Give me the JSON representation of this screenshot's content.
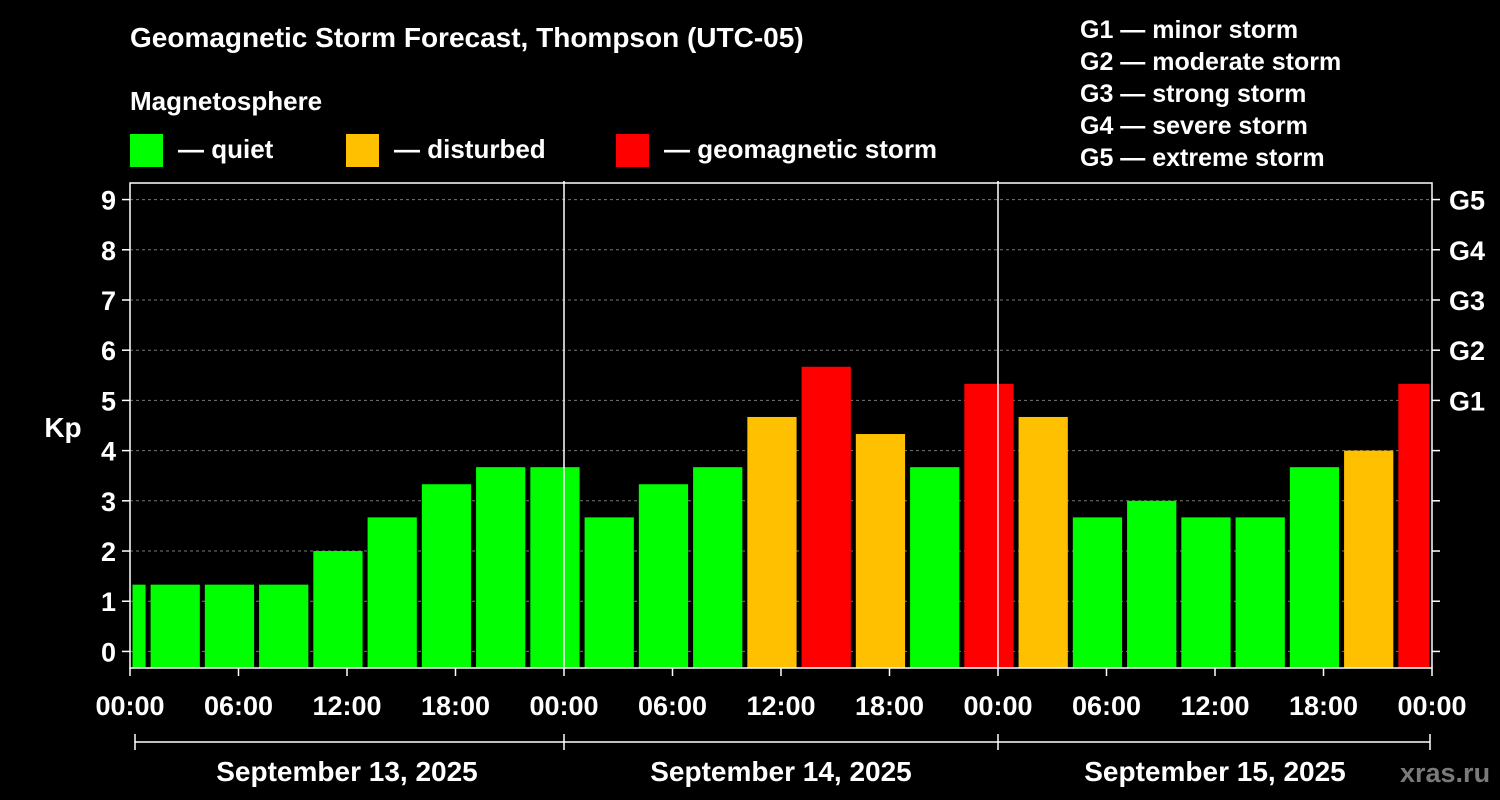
{
  "header": {
    "title": "Geomagnetic Storm Forecast, Thompson (UTC-05)",
    "magnetosphere_label": "Magnetosphere"
  },
  "legend": [
    {
      "label": "— quiet",
      "color": "#00ff00"
    },
    {
      "label": "— disturbed",
      "color": "#ffc000"
    },
    {
      "label": "— geomagnetic storm",
      "color": "#ff0000"
    }
  ],
  "storm_scale": [
    "G1 — minor storm",
    "G2 — moderate storm",
    "G3 — strong storm",
    "G4 — severe storm",
    "G5 — extreme storm"
  ],
  "watermark": "xras.ru",
  "chart_data": {
    "type": "bar",
    "ylabel": "Kp",
    "ylim": [
      -0.33,
      9.33
    ],
    "yticks": [
      0,
      1,
      2,
      3,
      4,
      5,
      6,
      7,
      8,
      9
    ],
    "right_axis": [
      {
        "kp": 5,
        "label": "G1"
      },
      {
        "kp": 6,
        "label": "G2"
      },
      {
        "kp": 7,
        "label": "G3"
      },
      {
        "kp": 8,
        "label": "G4"
      },
      {
        "kp": 9,
        "label": "G5"
      }
    ],
    "x_hours_range": [
      0,
      72
    ],
    "x_ticks": [
      {
        "h": 0,
        "label": "00:00"
      },
      {
        "h": 6,
        "label": "06:00"
      },
      {
        "h": 12,
        "label": "12:00"
      },
      {
        "h": 18,
        "label": "18:00"
      },
      {
        "h": 24,
        "label": "00:00"
      },
      {
        "h": 30,
        "label": "06:00"
      },
      {
        "h": 36,
        "label": "12:00"
      },
      {
        "h": 42,
        "label": "18:00"
      },
      {
        "h": 48,
        "label": "00:00"
      },
      {
        "h": 54,
        "label": "06:00"
      },
      {
        "h": 60,
        "label": "12:00"
      },
      {
        "h": 66,
        "label": "18:00"
      },
      {
        "h": 72,
        "label": "00:00"
      }
    ],
    "days": [
      "September 13, 2025",
      "September 14, 2025",
      "September 15, 2025"
    ],
    "grid": true,
    "legend_position": "top",
    "bars": [
      {
        "start": 0,
        "end": 1,
        "kp": 1.33,
        "level": "quiet"
      },
      {
        "start": 1,
        "end": 4,
        "kp": 1.33,
        "level": "quiet"
      },
      {
        "start": 4,
        "end": 7,
        "kp": 1.33,
        "level": "quiet"
      },
      {
        "start": 7,
        "end": 10,
        "kp": 1.33,
        "level": "quiet"
      },
      {
        "start": 10,
        "end": 13,
        "kp": 2.0,
        "level": "quiet"
      },
      {
        "start": 13,
        "end": 16,
        "kp": 2.67,
        "level": "quiet"
      },
      {
        "start": 16,
        "end": 19,
        "kp": 3.33,
        "level": "quiet"
      },
      {
        "start": 19,
        "end": 22,
        "kp": 3.67,
        "level": "quiet"
      },
      {
        "start": 22,
        "end": 25,
        "kp": 3.67,
        "level": "quiet"
      },
      {
        "start": 25,
        "end": 28,
        "kp": 2.67,
        "level": "quiet"
      },
      {
        "start": 28,
        "end": 31,
        "kp": 3.33,
        "level": "quiet"
      },
      {
        "start": 31,
        "end": 34,
        "kp": 3.67,
        "level": "quiet"
      },
      {
        "start": 34,
        "end": 37,
        "kp": 4.67,
        "level": "disturbed"
      },
      {
        "start": 37,
        "end": 40,
        "kp": 5.67,
        "level": "storm"
      },
      {
        "start": 40,
        "end": 43,
        "kp": 4.33,
        "level": "disturbed"
      },
      {
        "start": 43,
        "end": 46,
        "kp": 3.67,
        "level": "quiet"
      },
      {
        "start": 46,
        "end": 49,
        "kp": 5.33,
        "level": "storm"
      },
      {
        "start": 49,
        "end": 52,
        "kp": 4.67,
        "level": "disturbed"
      },
      {
        "start": 52,
        "end": 55,
        "kp": 2.67,
        "level": "quiet"
      },
      {
        "start": 55,
        "end": 58,
        "kp": 3.0,
        "level": "quiet"
      },
      {
        "start": 58,
        "end": 61,
        "kp": 2.67,
        "level": "quiet"
      },
      {
        "start": 61,
        "end": 64,
        "kp": 2.67,
        "level": "quiet"
      },
      {
        "start": 64,
        "end": 67,
        "kp": 3.67,
        "level": "quiet"
      },
      {
        "start": 67,
        "end": 70,
        "kp": 4.0,
        "level": "disturbed"
      },
      {
        "start": 70,
        "end": 72,
        "kp": 5.33,
        "level": "storm"
      }
    ],
    "level_colors": {
      "quiet": "#00ff00",
      "disturbed": "#ffc000",
      "storm": "#ff0000"
    }
  }
}
